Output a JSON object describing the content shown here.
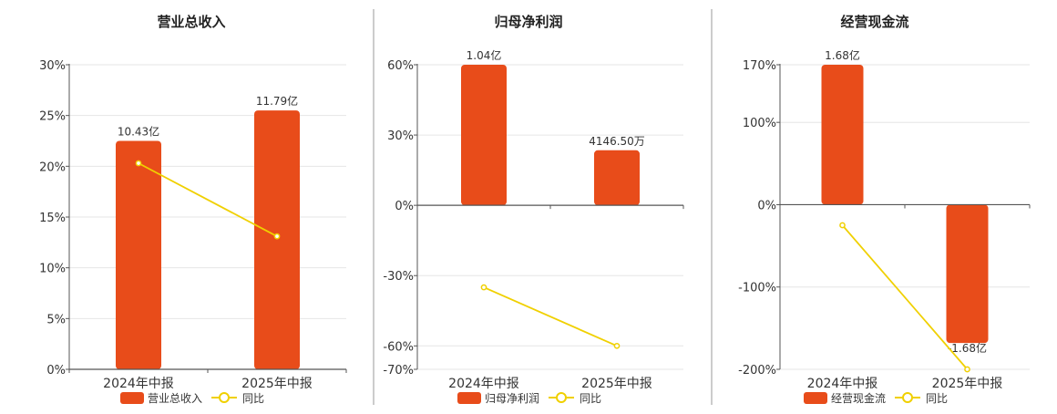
{
  "chart_data": [
    {
      "type": "bar",
      "title": "营业总收入",
      "categories": [
        "2024年中报",
        "2025年中报"
      ],
      "y_ticks": [
        "30%",
        "25%",
        "20%",
        "15%",
        "10%",
        "5%",
        "0%"
      ],
      "ylim": [
        0,
        30
      ],
      "grid": true,
      "series": [
        {
          "name": "营业总收入",
          "kind": "bar",
          "values": [
            22.5,
            25.5
          ],
          "labels": [
            "10.43亿",
            "11.79亿"
          ]
        },
        {
          "name": "同比",
          "kind": "line",
          "values": [
            20.3,
            13.1
          ]
        }
      ]
    },
    {
      "type": "bar",
      "title": "归母净利润",
      "categories": [
        "2024年中报",
        "2025年中报"
      ],
      "y_ticks": [
        "60%",
        "30%",
        "0%",
        "-30%",
        "-60%",
        "-70%"
      ],
      "ylim": [
        -70,
        60
      ],
      "grid": true,
      "series": [
        {
          "name": "归母净利润",
          "kind": "bar",
          "values": [
            60,
            23.5
          ],
          "labels": [
            "1.04亿",
            "4146.50万"
          ]
        },
        {
          "name": "同比",
          "kind": "line",
          "values": [
            -35,
            -60
          ]
        }
      ]
    },
    {
      "type": "bar",
      "title": "经营现金流",
      "categories": [
        "2024年中报",
        "2025年中报"
      ],
      "y_ticks": [
        "170%",
        "100%",
        "0%",
        "-100%",
        "-200%"
      ],
      "ylim": [
        -200,
        170
      ],
      "grid": true,
      "series": [
        {
          "name": "经营现金流",
          "kind": "bar",
          "values": [
            170,
            -168
          ],
          "labels": [
            "1.68亿",
            "-1.68亿"
          ]
        },
        {
          "name": "同比",
          "kind": "line",
          "values": [
            -25,
            -200
          ]
        }
      ]
    }
  ],
  "colors": {
    "bar": "#e84c1a",
    "line": "#f0d000",
    "axis": "#555555",
    "grid": "#e6e6e6",
    "divider": "#999999",
    "text": "#333333"
  }
}
